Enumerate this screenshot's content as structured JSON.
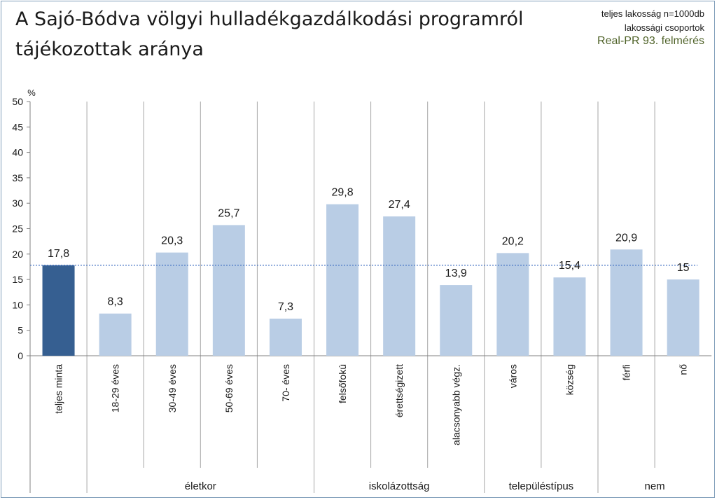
{
  "title": {
    "line1": "A Sajó-Bódva völgyi hulladékgazdálkodási programról",
    "line2": "tájékozottak aránya"
  },
  "notes": {
    "line1": "teljes lakosság n=1000db",
    "line2": "lakossági csoportok",
    "line3": "Real-PR 93. felmérés"
  },
  "chart_data": {
    "type": "bar",
    "ylabel": "%",
    "ylim": [
      0,
      50
    ],
    "yticks": [
      0,
      5,
      10,
      15,
      20,
      25,
      30,
      35,
      40,
      45,
      50
    ],
    "categories": [
      "teljes minta",
      "18-29 éves",
      "30-49 éves",
      "50-69 éves",
      "70- éves",
      "felsőfokú",
      "érettségizett",
      "alacsonyabb végz.",
      "város",
      "község",
      "férfi",
      "nő"
    ],
    "values": [
      17.8,
      8.3,
      20.3,
      25.7,
      7.3,
      29.8,
      27.4,
      13.9,
      20.2,
      15.4,
      20.9,
      15
    ],
    "value_labels": [
      "17,8",
      "8,3",
      "20,3",
      "25,7",
      "7,3",
      "29,8",
      "27,4",
      "13,9",
      "20,2",
      "15,4",
      "20,9",
      "15"
    ],
    "groups": [
      {
        "label": "",
        "count": 1
      },
      {
        "label": "életkor",
        "count": 4
      },
      {
        "label": "iskolázottság",
        "count": 3
      },
      {
        "label": "településtípus",
        "count": 2
      },
      {
        "label": "nem",
        "count": 2
      }
    ],
    "reference_line": {
      "value": 17.8,
      "style": "dotted"
    },
    "grid": {
      "vertical": true,
      "horizontal": false
    },
    "colors": {
      "highlight_bar": "#365f91",
      "bar": "#b9cde5",
      "reference_line": "#4472c4",
      "axis": "#808080",
      "grid": "#a6a6a6"
    }
  }
}
